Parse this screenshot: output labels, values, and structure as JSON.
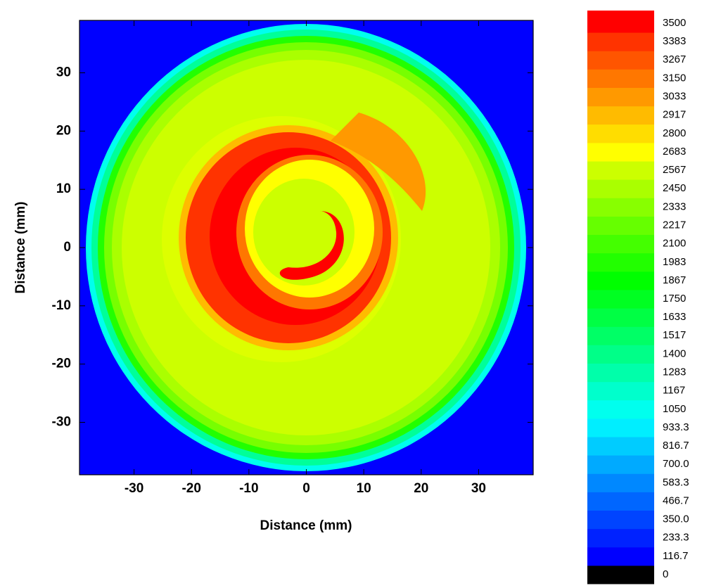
{
  "chart_data": {
    "type": "contour",
    "xlabel": "Distance (mm)",
    "ylabel": "Distance (mm)",
    "xlim": [
      -39.5,
      39.5
    ],
    "ylim": [
      -39,
      39
    ],
    "xticks": [
      -30,
      -20,
      -10,
      0,
      10,
      20,
      30
    ],
    "yticks": [
      -30,
      -20,
      -10,
      0,
      10,
      20,
      30
    ],
    "colorbar": {
      "levels": [
        0,
        116.7,
        233.3,
        {
          "value": 350,
          "label": "350.0"
        },
        466.7,
        583.3,
        {
          "value": 700,
          "label": "700.0"
        },
        816.7,
        933.3,
        1050,
        1167,
        1283,
        1400,
        1517,
        1633,
        1750,
        1867,
        1983,
        2100,
        2217,
        2333,
        2450,
        2567,
        2683,
        2800,
        2917,
        3033,
        3150,
        3267,
        3383,
        3500
      ],
      "colors": [
        "#000000",
        "#0000ff",
        "#0022ff",
        "#0044ff",
        "#0066ff",
        "#0088ff",
        "#00aaff",
        "#00ccff",
        "#00eeff",
        "#00ffee",
        "#00ffcc",
        "#00ffaa",
        "#00ff88",
        "#00ff66",
        "#00ff44",
        "#00ff22",
        "#00ff00",
        "#22ff00",
        "#44ff00",
        "#66ff00",
        "#88ff00",
        "#aaff00",
        "#ccff00",
        "#ffff00",
        "#ffdd00",
        "#ffbb00",
        "#ff9900",
        "#ff7700",
        "#ff5500",
        "#ff3300",
        "#ff0000"
      ]
    }
  }
}
